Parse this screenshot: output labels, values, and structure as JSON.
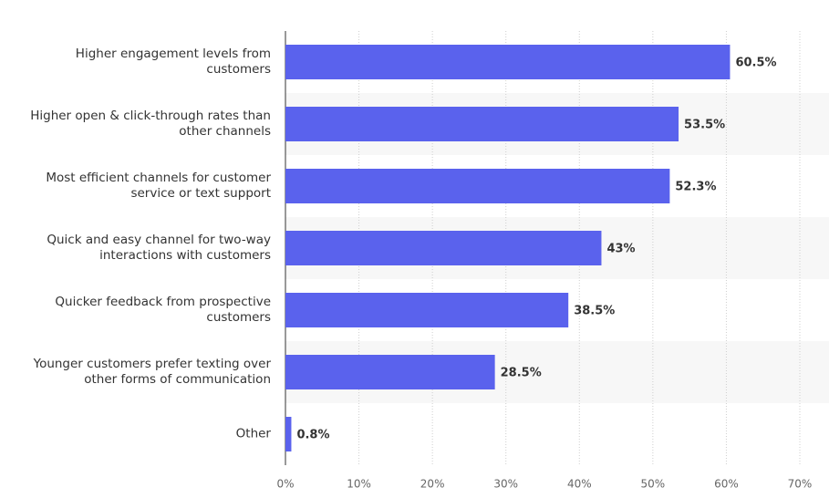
{
  "chart_data": {
    "type": "bar",
    "orientation": "horizontal",
    "categories": [
      "Higher engagement levels from\ncustomers",
      "Higher open & click-through rates than\nother channels",
      "Most efficient channels for customer\nservice or text support",
      "Quick and easy channel for two-way\ninteractions with customers",
      "Quicker feedback from prospective\ncustomers",
      "Younger customers prefer texting over\nother forms of communication",
      "Other"
    ],
    "values": [
      60.5,
      53.5,
      52.3,
      43,
      38.5,
      28.5,
      0.8
    ],
    "value_labels": [
      "60.5%",
      "53.5%",
      "52.3%",
      "43%",
      "38.5%",
      "28.5%",
      "0.8%"
    ],
    "color": "#5a62ed",
    "xlim": [
      0,
      70
    ],
    "xticks": [
      {
        "value": 0,
        "label": "0%"
      },
      {
        "value": 10,
        "label": "10%"
      },
      {
        "value": 20,
        "label": "20%"
      },
      {
        "value": 30,
        "label": "30%"
      },
      {
        "value": 40,
        "label": "40%"
      },
      {
        "value": 50,
        "label": "50%"
      },
      {
        "value": 60,
        "label": "60%"
      },
      {
        "value": 70,
        "label": "70%"
      }
    ],
    "grid": true
  }
}
